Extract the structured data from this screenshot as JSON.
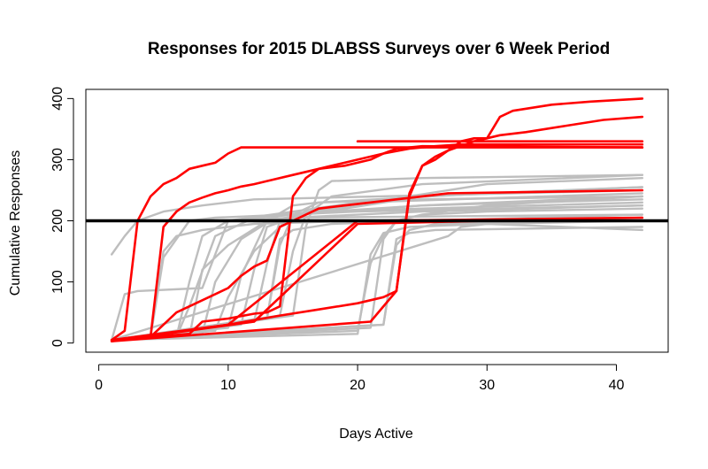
{
  "chart_data": {
    "type": "line",
    "title": "Responses for 2015 DLABSS Surveys over 6 Week Period",
    "xlabel": "Days Active",
    "ylabel": "Cumulative Responses",
    "xlim": [
      -1,
      44
    ],
    "ylim": [
      -15,
      415
    ],
    "xticks": [
      0,
      10,
      20,
      30,
      40
    ],
    "yticks": [
      0,
      100,
      200,
      300,
      400
    ],
    "grid": false,
    "legend": "none",
    "colors": {
      "highlight": "#ff0000",
      "other": "#bebebe",
      "reference": "#000000"
    },
    "reference_line": {
      "y": 200
    },
    "series": [
      {
        "group": "other",
        "x": [
          1,
          2,
          3,
          5,
          8,
          12,
          42
        ],
        "y": [
          145,
          175,
          200,
          215,
          225,
          235,
          250
        ]
      },
      {
        "group": "other",
        "x": [
          1,
          2,
          3,
          8,
          10,
          15,
          42
        ],
        "y": [
          5,
          80,
          85,
          90,
          200,
          205,
          210
        ]
      },
      {
        "group": "other",
        "x": [
          1,
          4,
          5,
          6,
          8,
          12,
          20,
          42
        ],
        "y": [
          5,
          10,
          150,
          175,
          185,
          195,
          200,
          205
        ]
      },
      {
        "group": "other",
        "x": [
          1,
          4,
          5,
          7,
          9,
          20,
          42
        ],
        "y": [
          5,
          10,
          140,
          200,
          205,
          215,
          225
        ]
      },
      {
        "group": "other",
        "x": [
          1,
          6,
          7,
          8,
          10,
          20,
          42
        ],
        "y": [
          5,
          10,
          100,
          175,
          200,
          230,
          245
        ]
      },
      {
        "group": "other",
        "x": [
          1,
          6,
          7,
          9,
          12,
          25,
          42
        ],
        "y": [
          5,
          10,
          60,
          175,
          205,
          225,
          235
        ]
      },
      {
        "group": "other",
        "x": [
          1,
          7,
          8,
          10,
          13,
          25,
          42
        ],
        "y": [
          5,
          10,
          120,
          160,
          200,
          240,
          255
        ]
      },
      {
        "group": "other",
        "x": [
          1,
          8,
          9,
          11,
          14,
          25,
          42
        ],
        "y": [
          5,
          15,
          100,
          170,
          210,
          225,
          240
        ]
      },
      {
        "group": "other",
        "x": [
          1,
          9,
          10,
          12,
          15,
          30,
          42
        ],
        "y": [
          5,
          20,
          75,
          150,
          210,
          260,
          270
        ]
      },
      {
        "group": "other",
        "x": [
          1,
          10,
          11,
          13,
          15,
          17,
          30,
          42
        ],
        "y": [
          5,
          25,
          110,
          200,
          225,
          230,
          245,
          255
        ]
      },
      {
        "group": "other",
        "x": [
          1,
          11,
          12,
          13,
          15,
          25,
          42
        ],
        "y": [
          5,
          30,
          120,
          190,
          205,
          215,
          225
        ]
      },
      {
        "group": "other",
        "x": [
          1,
          12,
          13,
          14,
          16,
          25,
          42
        ],
        "y": [
          5,
          35,
          130,
          200,
          215,
          220,
          230
        ]
      },
      {
        "group": "other",
        "x": [
          1,
          13,
          14,
          15,
          17,
          25,
          42
        ],
        "y": [
          5,
          40,
          160,
          210,
          230,
          235,
          240
        ]
      },
      {
        "group": "other",
        "x": [
          1,
          13,
          14,
          15,
          18,
          25,
          42
        ],
        "y": [
          5,
          40,
          170,
          185,
          195,
          200,
          210
        ]
      },
      {
        "group": "other",
        "x": [
          1,
          14,
          15,
          16,
          18,
          25,
          42
        ],
        "y": [
          5,
          45,
          150,
          210,
          240,
          260,
          275
        ]
      },
      {
        "group": "other",
        "x": [
          1,
          15,
          16,
          17,
          18,
          25,
          42
        ],
        "y": [
          5,
          45,
          190,
          250,
          265,
          270,
          275
        ]
      },
      {
        "group": "other",
        "x": [
          1,
          20,
          21,
          22,
          24,
          30,
          42
        ],
        "y": [
          5,
          15,
          145,
          180,
          190,
          195,
          200
        ]
      },
      {
        "group": "other",
        "x": [
          1,
          20,
          21,
          22,
          23,
          25,
          30,
          42
        ],
        "y": [
          5,
          20,
          130,
          175,
          200,
          210,
          215,
          220
        ]
      },
      {
        "group": "other",
        "x": [
          1,
          21,
          22,
          23,
          25,
          30,
          42
        ],
        "y": [
          5,
          25,
          170,
          200,
          210,
          225,
          240
        ]
      },
      {
        "group": "other",
        "x": [
          1,
          22,
          23,
          24,
          26,
          42
        ],
        "y": [
          5,
          30,
          160,
          185,
          195,
          205
        ]
      },
      {
        "group": "other",
        "x": [
          1,
          22,
          23,
          24,
          26,
          42
        ],
        "y": [
          5,
          30,
          170,
          180,
          185,
          190
        ]
      },
      {
        "group": "other",
        "x": [
          1,
          27,
          28,
          30,
          42
        ],
        "y": [
          5,
          175,
          190,
          195,
          185
        ]
      },
      {
        "group": "highlight",
        "x": [
          1,
          2,
          3,
          4,
          5,
          6,
          7,
          8,
          9,
          10,
          11,
          14,
          20,
          42
        ],
        "y": [
          5,
          20,
          200,
          240,
          260,
          270,
          285,
          290,
          295,
          310,
          320,
          320,
          320,
          320
        ]
      },
      {
        "group": "highlight",
        "x": [
          1,
          4,
          5,
          6,
          7,
          8,
          9,
          10,
          11,
          12,
          13,
          15,
          17,
          19,
          21,
          22,
          23,
          25,
          42
        ],
        "y": [
          5,
          10,
          190,
          215,
          230,
          238,
          245,
          250,
          256,
          260,
          265,
          275,
          285,
          290,
          300,
          310,
          318,
          322,
          320
        ]
      },
      {
        "group": "highlight",
        "x": [
          1,
          4,
          5,
          6,
          7,
          8,
          9,
          10,
          11,
          12,
          13,
          14,
          15,
          16,
          17,
          19,
          21,
          23,
          25,
          27,
          42
        ],
        "y": [
          5,
          10,
          30,
          50,
          60,
          70,
          80,
          90,
          110,
          125,
          135,
          190,
          200,
          210,
          220,
          225,
          230,
          235,
          240,
          245,
          250
        ]
      },
      {
        "group": "highlight",
        "x": [
          1,
          7,
          8,
          10,
          12,
          13,
          14,
          15,
          16,
          17,
          18,
          20,
          22,
          24,
          26,
          28,
          30,
          42
        ],
        "y": [
          5,
          15,
          35,
          40,
          48,
          50,
          60,
          240,
          270,
          285,
          290,
          300,
          310,
          318,
          322,
          325,
          325,
          325
        ]
      },
      {
        "group": "highlight",
        "x": [
          1,
          10,
          14,
          17,
          20,
          22,
          23,
          24,
          25,
          26,
          27,
          28,
          29,
          30,
          31,
          32,
          35,
          38,
          42
        ],
        "y": [
          3,
          30,
          45,
          55,
          65,
          75,
          85,
          245,
          290,
          305,
          315,
          330,
          335,
          335,
          370,
          380,
          390,
          395,
          400
        ]
      },
      {
        "group": "highlight",
        "x": [
          1,
          21,
          23,
          24,
          25,
          26,
          27,
          29,
          31,
          33,
          36,
          39,
          42
        ],
        "y": [
          3,
          35,
          85,
          240,
          290,
          300,
          315,
          330,
          340,
          345,
          355,
          365,
          370
        ]
      },
      {
        "group": "highlight",
        "x": [
          1,
          10,
          20,
          30,
          42
        ],
        "y": [
          5,
          30,
          200,
          202,
          205
        ]
      },
      {
        "group": "highlight",
        "x": [
          1,
          12,
          20,
          30,
          42
        ],
        "y": [
          3,
          35,
          195,
          200,
          200
        ]
      },
      {
        "group": "highlight",
        "x": [
          20,
          42
        ],
        "y": [
          330,
          330
        ]
      }
    ]
  }
}
